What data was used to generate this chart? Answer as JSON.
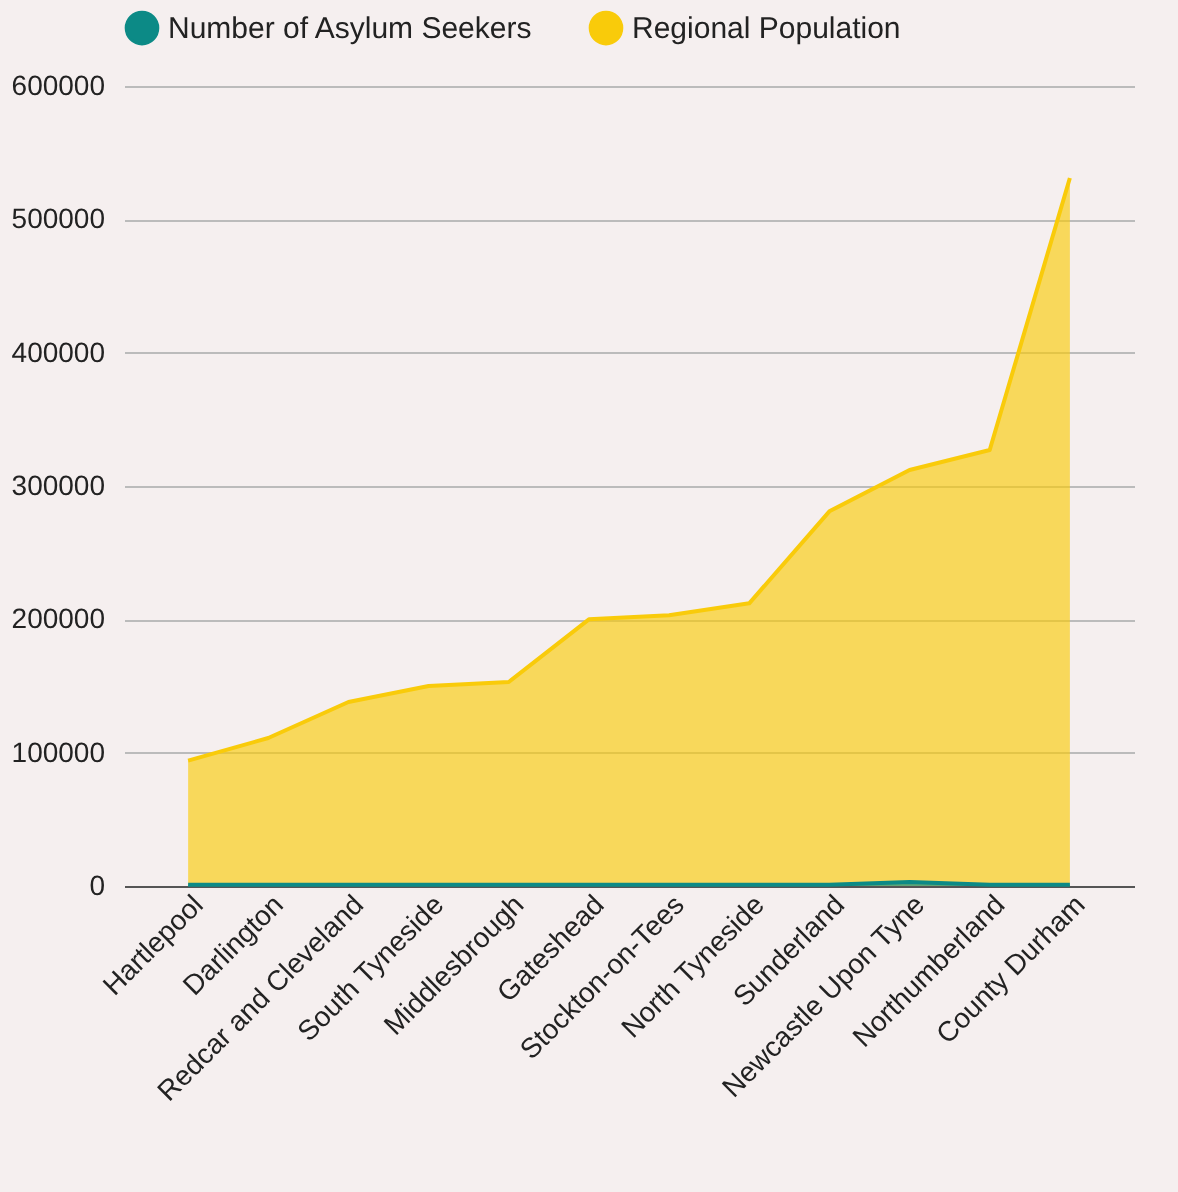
{
  "chart_data": {
    "type": "area",
    "categories": [
      "Hartlepool",
      "Darlington",
      "Redcar and Cleveland",
      "South Tyneside",
      "Middlesbrough",
      "Gateshead",
      "Stockton-on-Tees",
      "North Tyneside",
      "Sunderland",
      "Newcastle Upon Tyne",
      "Northumberland",
      "County Durham"
    ],
    "series": [
      {
        "name": "Regional Population",
        "color": "#f9cb0a",
        "values": [
          94000,
          111000,
          138000,
          150000,
          153000,
          200000,
          203000,
          212000,
          281000,
          312000,
          327000,
          531000
        ]
      },
      {
        "name": "Number of Asylum Seekers",
        "color": "#0c8a86",
        "values": [
          1000,
          1000,
          1000,
          1000,
          1000,
          1000,
          1000,
          1000,
          1000,
          3000,
          1000,
          1000
        ]
      }
    ],
    "ylim": [
      0,
      600000
    ],
    "yticks": [
      0,
      100000,
      200000,
      300000,
      400000,
      500000,
      600000
    ],
    "grid": "y",
    "legend": "top"
  }
}
